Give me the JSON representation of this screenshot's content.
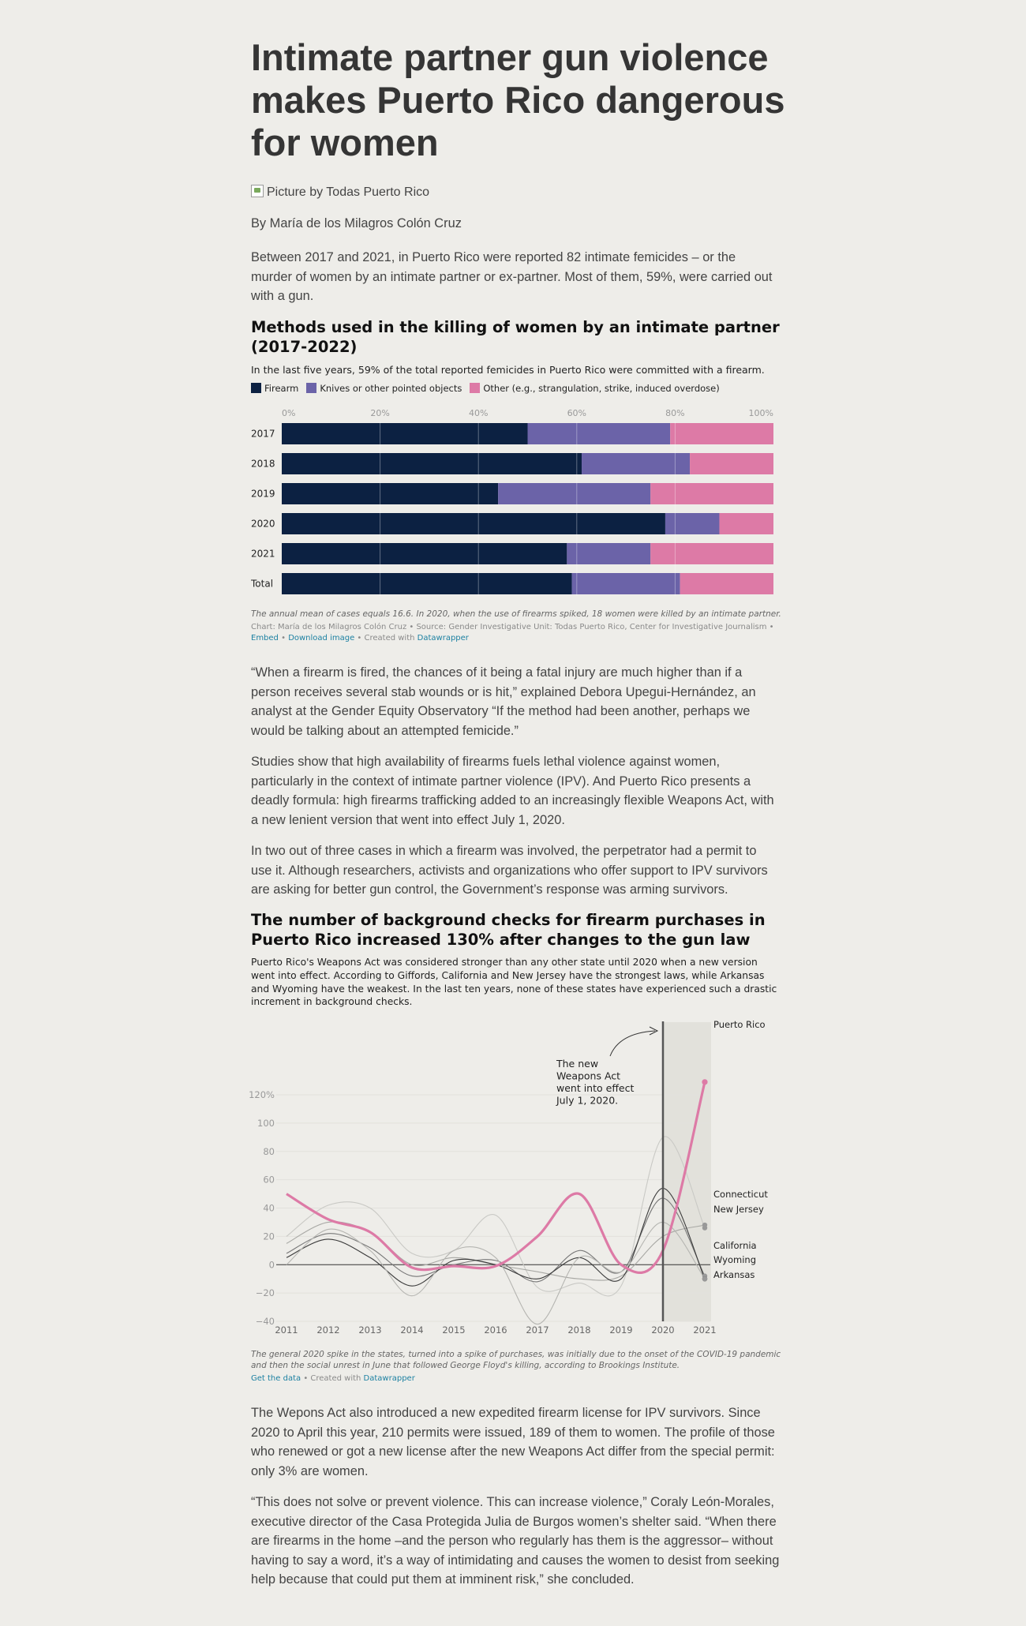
{
  "article": {
    "headline": "Intimate partner gun violence makes Puerto Rico dangerous for women",
    "image_caption": "Picture by Todas Puerto Rico",
    "byline": "By María de los Milagros Colón Cruz",
    "paragraphs_1": [
      "Between 2017 and 2021, in Puerto Rico were reported 82 intimate femicides – or the murder of women by an intimate partner or ex-partner. Most of them, 59%, were carried out with a gun."
    ],
    "paragraphs_2": [
      "“When a firearm is fired, the chances of it being a fatal injury are much higher than if a person receives several stab wounds or is hit,” explained Debora Upegui-Hernández, an analyst at the Gender Equity Observatory “If the method had been another, perhaps we would be talking about an attempted femicide.”",
      "Studies show that high availability of firearms fuels lethal violence against women, particularly in the context of intimate partner violence (IPV). And Puerto Rico presents a deadly formula: high firearms trafficking added to an increasingly flexible Weapons Act, with a new lenient version that went into effect July 1, 2020.",
      "In two out of three cases in which a firearm was involved, the perpetrator had a permit to use it. Although researchers, activists and organizations who offer support to IPV survivors are asking for better gun control, the Government’s response was arming survivors."
    ],
    "paragraphs_3": [
      "The Wepons Act also introduced a new expedited firearm license for IPV survivors. Since 2020 to April this year, 210 permits were issued, 189 of them to women. The profile of those who renewed or got a new license after the new Weapons Act differ from the special permit: only 3% are women.",
      "“This does not solve or prevent violence. This can increase violence,” Coraly León-Morales, executive director of the Casa Protegida Julia de Burgos women’s shelter said. “When there are firearms in the home –and the person who regularly has them is the aggressor– without having to say a word, it’s a way of intimidating and causes the women to desist from seeking help because that could put them at imminent risk,” she concluded."
    ]
  },
  "chart1": {
    "title": "Methods used in the killing of women by an intimate partner (2017-2022)",
    "description": "In the last five years, 59% of the total reported femicides in Puerto Rico were committed with a firearm.",
    "notes": "The annual mean of cases equals 16.6. In 2020, when the use of firearms spiked, 18 women were killed by an intimate partner.",
    "byline_text": "Chart: María de los Milagros Colón Cruz • Source: Gender Investigative Unit: Todas Puerto Rico, Center for Investigative Journalism •",
    "embed_label": "Embed",
    "download_label": "Download image",
    "created_with": "• Created with",
    "datawrapper": "Datawrapper",
    "colors": {
      "firearm": "#0c2142",
      "knives": "#6b63a8",
      "other": "#dd7aa6"
    }
  },
  "chart2": {
    "title": "The number of background checks for firearm purchases in Puerto Rico increased 130% after changes to the gun law",
    "description": "Puerto Rico's Weapons Act was considered stronger than any other state until 2020 when a new version went into effect. According to Giffords, California and New Jersey have the strongest laws, while Arkansas and Wyoming have the weakest. In the last ten years, none of these states have experienced such a drastic increment in background checks.",
    "annotation": [
      "The new",
      "Weapons Act",
      "went into effect",
      "July 1, 2020."
    ],
    "notes": "The general 2020 spike in the states, turned into a spike of purchases, was initially due to the onset of the COVID-19 pandemic and then the social unrest in June that followed George Floyd's killing, according to Brookings Institute.",
    "get_data": "Get the data",
    "created_with": "• Created with",
    "datawrapper": "Datawrapper"
  },
  "chart_data": [
    {
      "type": "bar",
      "stacked": true,
      "orientation": "horizontal",
      "categories": [
        "2017",
        "2018",
        "2019",
        "2020",
        "2021",
        "Total"
      ],
      "series": [
        {
          "name": "Firearm",
          "values": [
            50,
            61,
            44,
            78,
            58,
            59
          ]
        },
        {
          "name": "Knives or other pointed objects",
          "values": [
            29,
            22,
            31,
            11,
            17,
            22
          ]
        },
        {
          "name": "Other (e.g., strangulation, strike, induced overdose)",
          "values": [
            21,
            17,
            25,
            11,
            25,
            19
          ]
        }
      ],
      "x_ticks": [
        "0%",
        "20%",
        "40%",
        "60%",
        "80%",
        "100%"
      ],
      "xlim": [
        0,
        100
      ],
      "legend_position": "top-left"
    },
    {
      "type": "line",
      "x": [
        2011,
        2012,
        2013,
        2014,
        2015,
        2016,
        2017,
        2018,
        2019,
        2020,
        2021
      ],
      "x_ticks": [
        "2011",
        "2012",
        "2013",
        "2014",
        "2015",
        "2016",
        "2017",
        "2018",
        "2019",
        "2020",
        "2021"
      ],
      "y_ticks": [
        "120%",
        "100",
        "80",
        "60",
        "40",
        "20",
        "0",
        "−20",
        "−40"
      ],
      "ylim": [
        -40,
        125
      ],
      "highlight_x": [
        2020,
        2021
      ],
      "series": [
        {
          "name": "Puerto Rico",
          "values": [
            50,
            32,
            23,
            -2,
            -1,
            -1,
            20,
            50,
            0,
            10,
            129
          ]
        },
        {
          "name": "Connecticut",
          "values": [
            20,
            42,
            40,
            8,
            10,
            35,
            -16,
            -13,
            -15,
            90,
            26
          ]
        },
        {
          "name": "New Jersey",
          "values": [
            15,
            30,
            23,
            0,
            5,
            0,
            -5,
            -10,
            -8,
            20,
            28
          ]
        },
        {
          "name": "California",
          "values": [
            8,
            22,
            12,
            -8,
            0,
            3,
            -12,
            10,
            -5,
            47,
            -8
          ]
        },
        {
          "name": "Wyoming",
          "values": [
            5,
            18,
            5,
            -15,
            3,
            0,
            -10,
            5,
            -10,
            54,
            -10
          ]
        },
        {
          "name": "Arkansas",
          "values": [
            0,
            25,
            10,
            -22,
            10,
            5,
            -42,
            5,
            -5,
            30,
            -10
          ]
        }
      ],
      "label_lines": [
        "Connecticut",
        "New Jersey",
        "California",
        "Wyoming",
        "Arkansas"
      ]
    }
  ]
}
